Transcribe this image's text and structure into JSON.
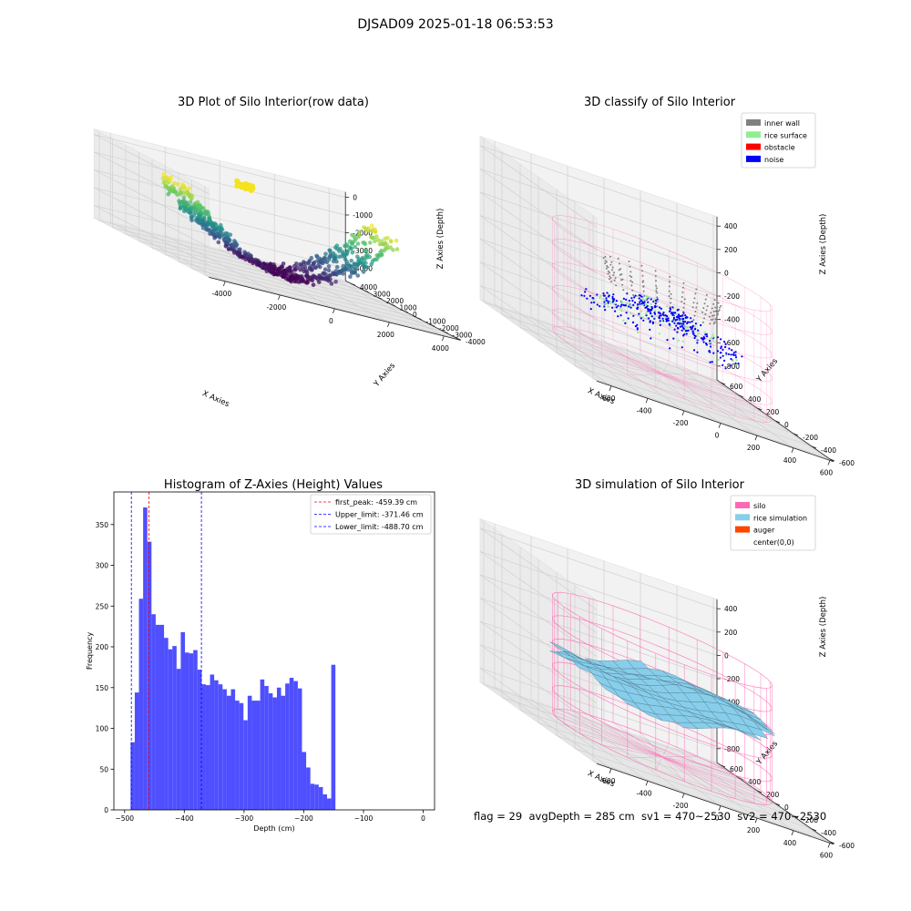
{
  "suptitle": "DJSAD09 2025-01-18 06:53:53",
  "footer": "flag = 29  avgDepth = 285 cm  sv1 = 470~2530  sv2 = 470~2530",
  "chart_data": [
    {
      "type": "scatter",
      "title": "3D Plot of Silo Interior(row data)",
      "xlabel": "X Axies",
      "ylabel": "Y Axies",
      "zlabel": "Z Axies (Depth)",
      "x_ticks": [
        "-4000",
        "-2000",
        "0",
        "2000",
        "4000"
      ],
      "y_ticks": [
        "-4000",
        "-3000",
        "-2000",
        "-1000",
        "0",
        "1000",
        "2000",
        "3000",
        "4000"
      ],
      "z_ticks": [
        "-4000",
        "-3000",
        "-2000",
        "-1000",
        "0"
      ],
      "colormap": "viridis",
      "grid": true
    },
    {
      "type": "scatter",
      "title": "3D classify of Silo Interior",
      "xlabel": "X Axies",
      "ylabel": "Y Axies",
      "zlabel": "Z Axies (Depth)",
      "x_ticks": [
        "-600",
        "-400",
        "-200",
        "0",
        "200",
        "400",
        "600"
      ],
      "y_ticks": [
        "-600",
        "-400",
        "-200",
        "0",
        "200",
        "400",
        "600"
      ],
      "z_ticks": [
        "-800",
        "-600",
        "-400",
        "-200",
        "0",
        "200",
        "400"
      ],
      "legend_position": "top-right",
      "legend": [
        {
          "label": "inner wall",
          "color": "#808080"
        },
        {
          "label": "rice surface",
          "color": "#90ee90"
        },
        {
          "label": "obstacle",
          "color": "#ff0000"
        },
        {
          "label": "noise",
          "color": "#0000ff"
        }
      ],
      "silo_wire_color": "#ff69b4",
      "grid": true
    },
    {
      "type": "bar",
      "title": "Histogram of Z-Axies (Height) Values",
      "xlabel": "Depth (cm)",
      "ylabel": "Frequency",
      "xlim": [
        -518,
        19
      ],
      "ylim": [
        0,
        390
      ],
      "x_ticks": [
        "−500",
        "−400",
        "−300",
        "−200",
        "−100",
        "0"
      ],
      "y_ticks": [
        "0",
        "50",
        "100",
        "150",
        "200",
        "250",
        "300",
        "350"
      ],
      "bin_start": -490,
      "bin_width": 7.0,
      "bar_color": "#4b4bff",
      "values": [
        83,
        144,
        259,
        371,
        329,
        240,
        227,
        227,
        211,
        197,
        201,
        173,
        218,
        193,
        192,
        196,
        172,
        154,
        153,
        166,
        159,
        154,
        148,
        140,
        148,
        134,
        131,
        110,
        140,
        134,
        134,
        160,
        152,
        143,
        138,
        150,
        140,
        155,
        162,
        158,
        149,
        71,
        52,
        32,
        31,
        28,
        19,
        14,
        178
      ],
      "vlines": [
        {
          "label": "first_peak: -459.39 cm",
          "x": -459.39,
          "color": "#ff0000"
        },
        {
          "label": "Upper_limit: -371.46 cm",
          "x": -371.46,
          "color": "#0000ff"
        },
        {
          "label": "Lower_limit: -488.70 cm",
          "x": -488.7,
          "color": "#0000ff"
        }
      ],
      "legend_position": "top-right"
    },
    {
      "type": "surface",
      "title": "3D simulation of Silo Interior",
      "xlabel": "X Axies",
      "ylabel": "Y Axies",
      "zlabel": "Z Axies (Depth)",
      "x_ticks": [
        "-600",
        "-400",
        "-200",
        "0",
        "200",
        "400",
        "600"
      ],
      "y_ticks": [
        "-600",
        "-400",
        "-200",
        "0",
        "200",
        "400",
        "600"
      ],
      "z_ticks": [
        "-800",
        "-600",
        "-400",
        "-200",
        "0",
        "200",
        "400"
      ],
      "legend_position": "top-right",
      "legend": [
        {
          "label": "silo",
          "color": "#ff69b4"
        },
        {
          "label": "rice simulation",
          "color": "#87ceeb"
        },
        {
          "label": "auger",
          "color": "#ff4500"
        },
        {
          "label": "center(0,0)",
          "color": "#ffffff"
        }
      ],
      "grid": true
    }
  ]
}
